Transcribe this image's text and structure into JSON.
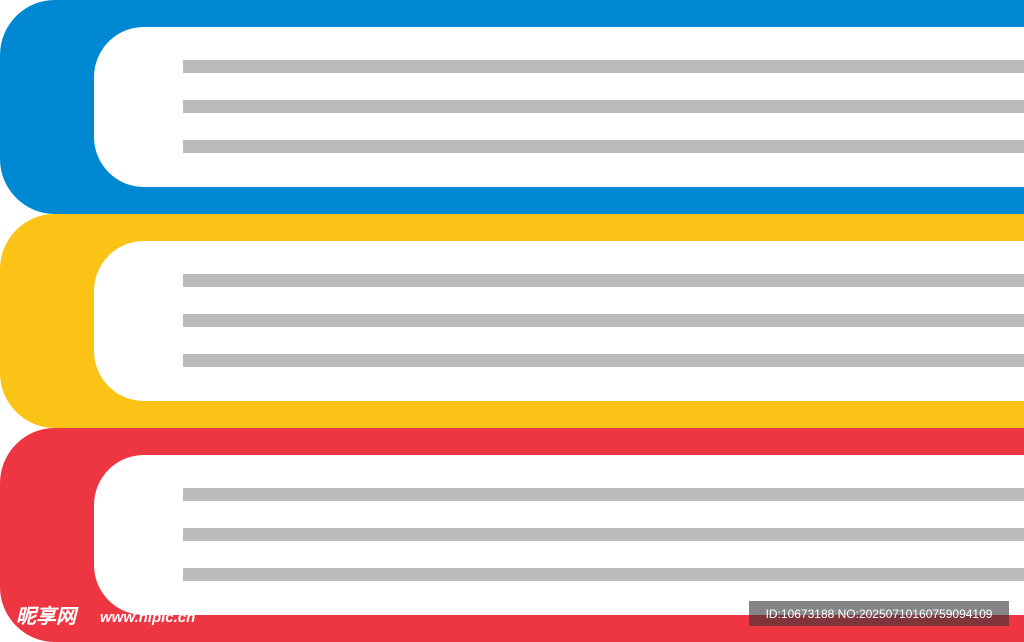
{
  "watermark": {
    "site": "昵享网",
    "url": "www.nipic.cn"
  },
  "id_stamp": "ID:10673188 NO:20250710160759094109"
}
